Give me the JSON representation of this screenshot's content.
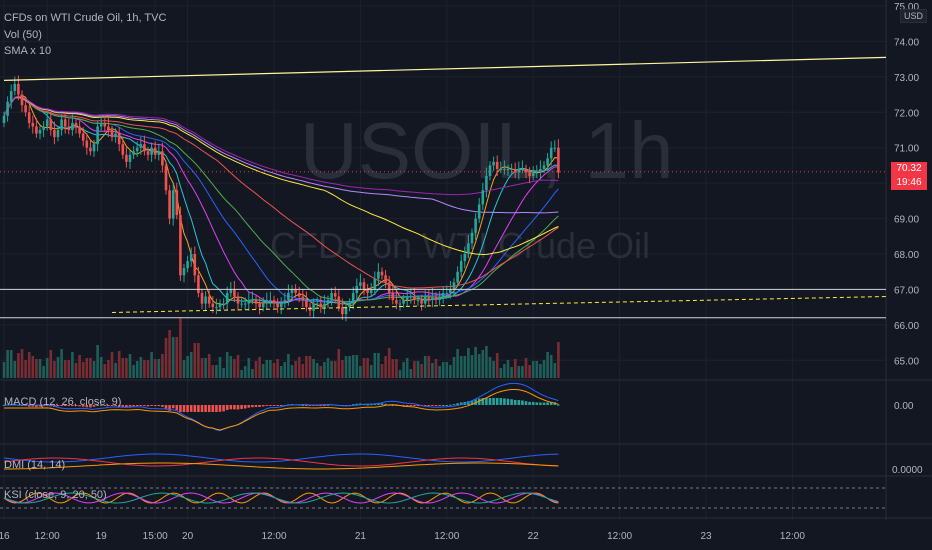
{
  "header": {
    "symbol_title": "CFDs on WTI Crude Oil, 1h, TVC",
    "currency": "USD",
    "watermark_symbol": "USOIL, 1h",
    "watermark_name": "CFDs on WTI Crude Oil"
  },
  "indicators": {
    "vol": "Vol (50)",
    "sma": "SMA x 10",
    "macd": "MACD (12, 26, close, 9)",
    "dmi": "DMI (14, 14)",
    "ksi": "KSI (close, 9, 20, 50)"
  },
  "price_tag": {
    "price": "70.32",
    "countdown": "19:46"
  },
  "colors": {
    "background": "#131722",
    "up": "#26a69a",
    "down": "#ef5350",
    "tag": "#f23645",
    "grid": "#1e222d"
  },
  "chart_data": {
    "type": "candlestick",
    "price_axis": {
      "ylim": [
        64.5,
        75.0
      ],
      "ticks": [
        "75.00",
        "74.00",
        "73.00",
        "72.00",
        "71.00",
        "70.00",
        "69.00",
        "68.00",
        "67.00",
        "66.00",
        "65.00"
      ]
    },
    "macd_axis": {
      "ticks": [
        "0.00"
      ]
    },
    "dmi_axis": {
      "ticks": [
        "0.0000"
      ]
    },
    "x_ticks": [
      {
        "label": "16",
        "pos": 0
      },
      {
        "label": "12:00",
        "pos": 12
      },
      {
        "label": "19",
        "pos": 27
      },
      {
        "label": "15:00",
        "pos": 42
      },
      {
        "label": "20",
        "pos": 51
      },
      {
        "label": "12:00",
        "pos": 75
      },
      {
        "label": "21",
        "pos": 99
      },
      {
        "label": "12:00",
        "pos": 123
      },
      {
        "label": "22",
        "pos": 147
      },
      {
        "label": "12:00",
        "pos": 171
      },
      {
        "label": "23",
        "pos": 195
      },
      {
        "label": "12:00",
        "pos": 219
      }
    ],
    "last_bar": 184,
    "close": [
      71.9,
      72.3,
      72.6,
      72.8,
      72.5,
      72.2,
      72.0,
      71.7,
      71.6,
      71.4,
      71.5,
      71.6,
      71.8,
      71.5,
      71.3,
      71.5,
      71.8,
      71.6,
      71.5,
      71.7,
      71.6,
      71.4,
      71.2,
      71.0,
      70.9,
      71.1,
      71.6,
      71.7,
      71.6,
      71.5,
      71.3,
      71.4,
      71.1,
      70.8,
      70.6,
      70.8,
      70.9,
      71.0,
      71.1,
      70.9,
      70.8,
      71.0,
      70.8,
      70.9,
      70.5,
      69.8,
      69.0,
      69.8,
      69.1,
      67.4,
      67.6,
      67.8,
      68.0,
      67.4,
      66.9,
      66.6,
      66.8,
      66.6,
      66.5,
      66.5,
      66.6,
      66.6,
      66.9,
      67.0,
      66.8,
      66.6,
      66.6,
      66.6,
      66.7,
      66.7,
      66.6,
      66.5,
      66.6,
      66.7,
      66.7,
      66.6,
      66.5,
      66.6,
      66.7,
      66.9,
      67.0,
      66.9,
      66.8,
      66.7,
      66.5,
      66.4,
      66.6,
      66.6,
      66.5,
      66.6,
      66.7,
      66.9,
      66.8,
      66.5,
      66.3,
      66.5,
      66.6,
      66.9,
      67.1,
      67.2,
      67.0,
      66.9,
      67.0,
      67.3,
      67.5,
      67.4,
      67.2,
      66.9,
      66.7,
      66.6,
      66.6,
      66.7,
      66.8,
      66.8,
      66.7,
      66.7,
      66.6,
      66.8,
      66.7,
      66.8,
      66.7,
      66.8,
      66.9,
      66.9,
      67.0,
      67.2,
      67.5,
      67.8,
      68.0,
      68.3,
      68.6,
      69.0,
      69.4,
      69.8,
      70.2,
      70.5,
      70.6,
      70.4,
      70.4,
      70.4,
      70.4,
      70.4,
      70.3,
      70.4,
      70.4,
      70.3,
      70.2,
      70.3,
      70.3,
      70.4,
      70.5,
      70.7,
      71.0,
      71.0,
      70.3
    ],
    "vol_levels": "relative",
    "hlines": [
      67.0,
      66.2
    ],
    "trendline": {
      "from": [
        0,
        72.9
      ],
      "to": [
        240,
        73.55
      ]
    },
    "dashed_support": {
      "from": [
        30,
        66.35
      ],
      "to": [
        240,
        66.8
      ]
    }
  }
}
